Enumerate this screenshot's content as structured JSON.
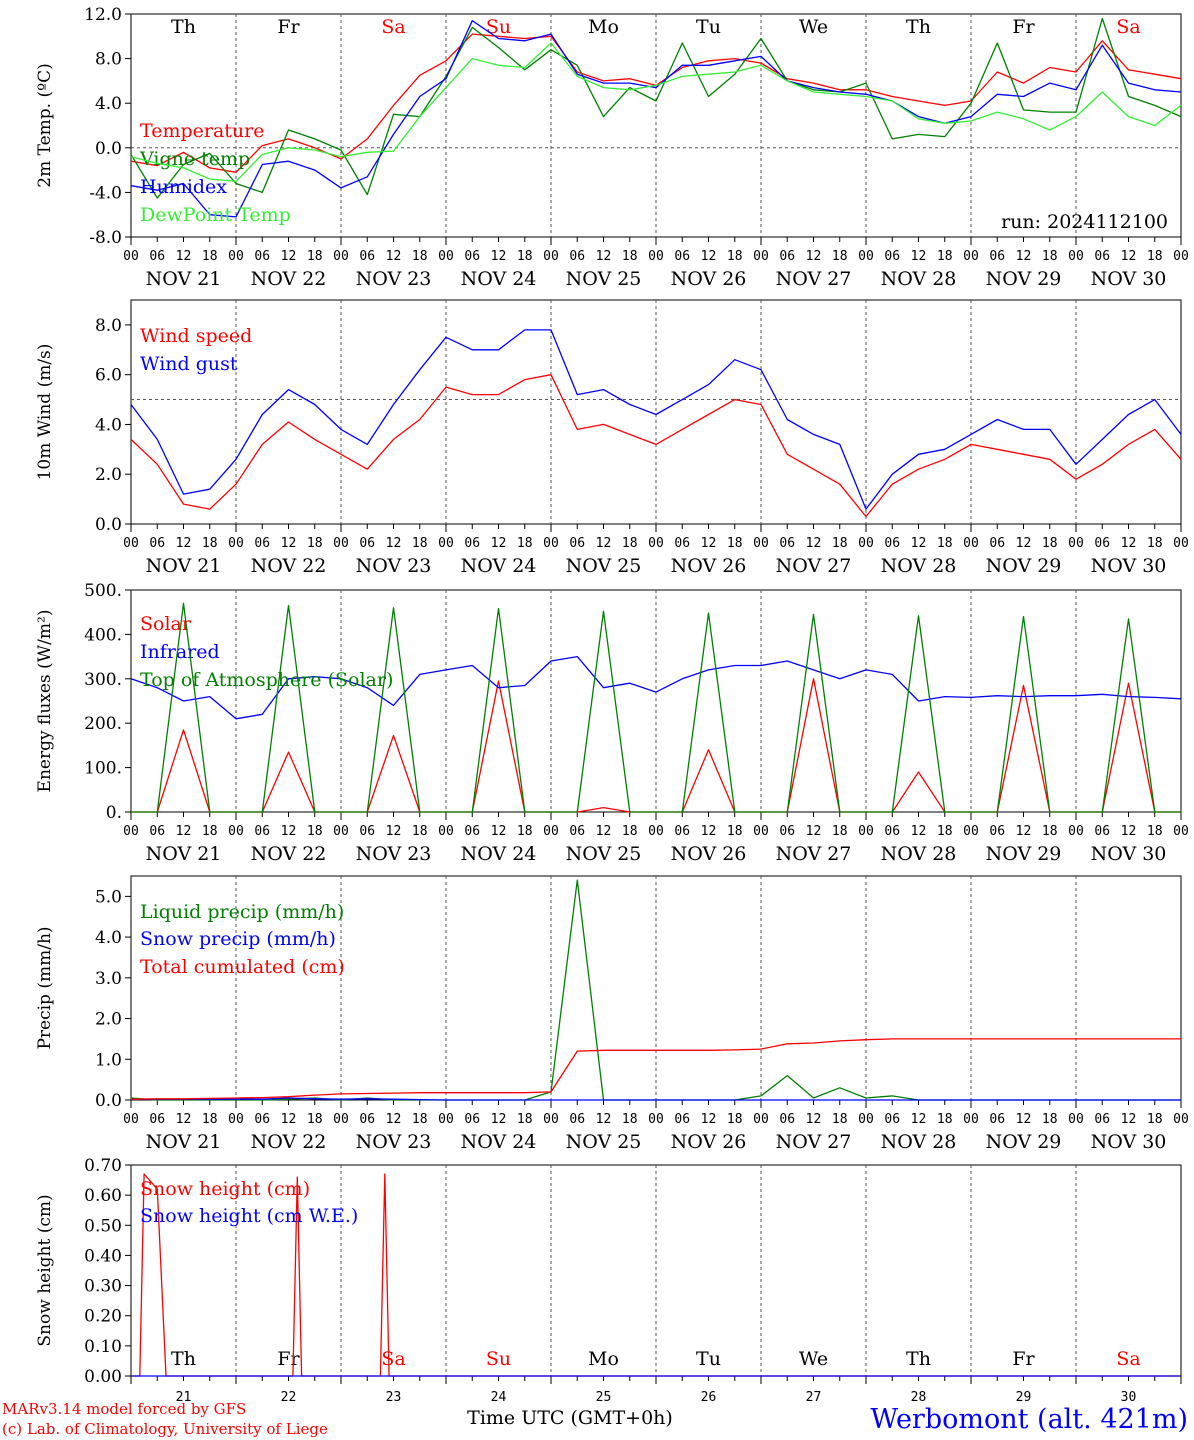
{
  "footer": {
    "model_line": "MARv3.14 model forced by GFS",
    "credit_line": "(c) Lab. of Climatology, University of Liege",
    "xaxis_label": "Time UTC (GMT+0h)",
    "station": "Werbomont (alt. 421m)"
  },
  "colors": {
    "red": "#ff0000",
    "darkgreen": "#008000",
    "blue": "#0000ff",
    "lightgreen": "#33ee33",
    "grid": "#555555"
  },
  "time_axis": {
    "hour_ticks": [
      "00",
      "06",
      "12",
      "18"
    ],
    "end_tick": "00",
    "days": [
      "NOV 21",
      "NOV 22",
      "NOV 23",
      "NOV 24",
      "NOV 25",
      "NOV 26",
      "NOV 27",
      "NOV 28",
      "NOV 29",
      "NOV 30"
    ],
    "weekdays": [
      "Th",
      "Fr",
      "Sa",
      "Su",
      "Mo",
      "Tu",
      "We",
      "Th",
      "Fr",
      "Sa"
    ],
    "weekend_flags": [
      false,
      false,
      true,
      true,
      false,
      false,
      false,
      false,
      false,
      true
    ],
    "day_numbers": [
      "21",
      "22",
      "23",
      "24",
      "25",
      "26",
      "27",
      "28",
      "29",
      "30"
    ]
  },
  "chart_data": [
    {
      "type": "line",
      "ylabel": "2m Temp. (ºC)",
      "ylim": [
        -8,
        12
      ],
      "yticks": [
        "12.0",
        "8.0",
        "4.0",
        "0.0",
        "-4.0",
        "-8.0"
      ],
      "reference_line": 0,
      "run_label": "run: 2024112100",
      "x_hours": [
        0,
        6,
        12,
        18,
        24,
        30,
        36,
        42,
        48,
        54,
        60,
        66,
        72,
        78,
        84,
        90,
        96,
        102,
        108,
        114,
        120,
        126,
        132,
        138,
        144,
        150,
        156,
        162,
        168,
        174,
        180,
        186,
        192,
        198,
        204,
        210,
        216,
        222,
        228,
        234,
        240
      ],
      "series": [
        {
          "name": "Temperature",
          "color": "red",
          "values": [
            -1.2,
            -1.6,
            -0.4,
            -1.8,
            -2.2,
            0.2,
            0.8,
            0,
            -1,
            0.8,
            3.8,
            6.5,
            7.8,
            10.2,
            10,
            9.8,
            10,
            6.8,
            6,
            6.2,
            5.6,
            7.2,
            7.8,
            8,
            7.6,
            6.2,
            5.8,
            5.2,
            5.2,
            4.6,
            4.2,
            3.8,
            4.2,
            6.8,
            5.8,
            7.2,
            6.8,
            9.6,
            7,
            6.6,
            6.2
          ]
        },
        {
          "name": "Vigne temp",
          "color": "darkgreen",
          "values": [
            -0.6,
            -4.5,
            -1.5,
            -0.5,
            -3.2,
            -4,
            1.6,
            0.8,
            -0.2,
            -4.2,
            3,
            2.8,
            6.4,
            10.8,
            9,
            7,
            8.8,
            7.4,
            2.8,
            5.4,
            4.2,
            9.4,
            4.6,
            6.6,
            9.8,
            6,
            5.2,
            5,
            5.8,
            0.8,
            1.2,
            1,
            4,
            9.4,
            3.4,
            3.2,
            3.2,
            11.6,
            4.6,
            3.8,
            2.8
          ]
        },
        {
          "name": "Humidex",
          "color": "blue",
          "values": [
            -3.4,
            -3.8,
            -3.2,
            -6,
            -6.2,
            -1.5,
            -1.2,
            -2,
            -3.6,
            -2.6,
            1.2,
            4.6,
            6.2,
            11.4,
            9.8,
            9.6,
            10.2,
            6.6,
            5.8,
            5.8,
            5.4,
            7.4,
            7.4,
            7.8,
            8.2,
            6,
            5.4,
            5,
            4.8,
            4.2,
            2.8,
            2.2,
            2.8,
            4.8,
            4.6,
            5.8,
            5.2,
            9.2,
            5.8,
            5.2,
            5
          ]
        },
        {
          "name": "DewPoint Temp",
          "color": "lightgreen",
          "values": [
            -0.8,
            -1.4,
            -1.8,
            -2.8,
            -3,
            -0.6,
            0,
            -0.2,
            -0.8,
            -0.4,
            -0.3,
            2.8,
            5.4,
            8,
            7.4,
            7.2,
            9.4,
            6.4,
            5.4,
            5.2,
            5.6,
            6.4,
            6.6,
            6.8,
            7.4,
            6,
            5,
            4.8,
            4.6,
            4.2,
            2.6,
            2.2,
            2.4,
            3.2,
            2.6,
            1.6,
            2.8,
            5,
            2.8,
            2,
            3.8
          ]
        }
      ]
    },
    {
      "type": "line",
      "ylabel": "10m Wind (m/s)",
      "ylim": [
        0,
        9
      ],
      "yticks": [
        "8.0",
        "6.0",
        "4.0",
        "2.0",
        "0.0"
      ],
      "reference_line": 5,
      "x_hours": [
        0,
        6,
        12,
        18,
        24,
        30,
        36,
        42,
        48,
        54,
        60,
        66,
        72,
        78,
        84,
        90,
        96,
        102,
        108,
        114,
        120,
        126,
        132,
        138,
        144,
        150,
        156,
        162,
        168,
        174,
        180,
        186,
        192,
        198,
        204,
        210,
        216,
        222,
        228,
        234,
        240
      ],
      "series": [
        {
          "name": "Wind speed",
          "color": "red",
          "values": [
            3.4,
            2.4,
            0.8,
            0.6,
            1.6,
            3.2,
            4.1,
            3.4,
            2.8,
            2.2,
            3.4,
            4.2,
            5.5,
            5.2,
            5.2,
            5.8,
            6,
            3.8,
            4,
            3.6,
            3.2,
            3.8,
            4.4,
            5,
            4.8,
            2.8,
            2.2,
            1.6,
            0.3,
            1.6,
            2.2,
            2.6,
            3.2,
            3,
            2.8,
            2.6,
            1.8,
            2.4,
            3.2,
            3.8,
            2.6
          ]
        },
        {
          "name": "Wind gust",
          "color": "blue",
          "values": [
            4.8,
            3.4,
            1.2,
            1.4,
            2.6,
            4.4,
            5.4,
            4.8,
            3.8,
            3.2,
            4.8,
            6.2,
            7.5,
            7,
            7,
            7.8,
            7.8,
            5.2,
            5.4,
            4.8,
            4.4,
            5,
            5.6,
            6.6,
            6.2,
            4.2,
            3.6,
            3.2,
            0.6,
            2,
            2.8,
            3,
            3.6,
            4.2,
            3.8,
            3.8,
            2.4,
            3.4,
            4.4,
            5,
            3.6
          ]
        }
      ]
    },
    {
      "type": "line",
      "ylabel": "Energy fluxes (W/m²)",
      "ylim": [
        0,
        500
      ],
      "yticks": [
        "500.",
        "400.",
        "300.",
        "200.",
        "100.",
        "0."
      ],
      "x_hours": [
        0,
        6,
        12,
        18,
        24,
        30,
        36,
        42,
        48,
        54,
        60,
        66,
        72,
        78,
        84,
        90,
        96,
        102,
        108,
        114,
        120,
        126,
        132,
        138,
        144,
        150,
        156,
        162,
        168,
        174,
        180,
        186,
        192,
        198,
        204,
        210,
        216,
        222,
        228,
        234,
        240
      ],
      "series": [
        {
          "name": "Solar",
          "color": "red",
          "values": [
            0,
            0,
            185,
            0,
            0,
            0,
            135,
            0,
            0,
            0,
            172,
            0,
            0,
            0,
            295,
            0,
            0,
            0,
            10,
            0,
            0,
            0,
            140,
            0,
            0,
            0,
            300,
            0,
            0,
            0,
            90,
            0,
            0,
            0,
            285,
            0,
            0,
            0,
            290,
            0,
            0
          ]
        },
        {
          "name": "Infrared",
          "color": "blue",
          "values": [
            300,
            280,
            250,
            260,
            210,
            220,
            300,
            305,
            300,
            280,
            240,
            310,
            320,
            330,
            280,
            285,
            340,
            350,
            280,
            290,
            270,
            300,
            320,
            330,
            330,
            340,
            320,
            300,
            320,
            310,
            250,
            260,
            258,
            262,
            260,
            262,
            262,
            265,
            260,
            258,
            255
          ]
        },
        {
          "name": "Top of Atmosphere (Solar)",
          "color": "darkgreen",
          "values": [
            0,
            0,
            470,
            0,
            0,
            0,
            465,
            0,
            0,
            0,
            460,
            0,
            0,
            0,
            458,
            0,
            0,
            0,
            452,
            0,
            0,
            0,
            448,
            0,
            0,
            0,
            445,
            0,
            0,
            0,
            442,
            0,
            0,
            0,
            440,
            0,
            0,
            0,
            435,
            0,
            0
          ]
        }
      ]
    },
    {
      "type": "line",
      "ylabel": "Precip (mm/h)",
      "ylim": [
        0,
        5.5
      ],
      "yticks": [
        "5.0",
        "4.0",
        "3.0",
        "2.0",
        "1.0",
        "0.0"
      ],
      "x_hours": [
        0,
        6,
        12,
        18,
        24,
        30,
        36,
        42,
        48,
        54,
        60,
        66,
        72,
        78,
        84,
        90,
        96,
        102,
        108,
        114,
        120,
        126,
        132,
        138,
        144,
        150,
        156,
        162,
        168,
        174,
        180,
        186,
        192,
        198,
        204,
        210,
        216,
        222,
        228,
        234,
        240
      ],
      "series": [
        {
          "name": "Liquid precip (mm/h)",
          "color": "darkgreen",
          "values": [
            0.05,
            0,
            0,
            0,
            0,
            0,
            0.02,
            0.05,
            0,
            0.05,
            0,
            0,
            0,
            0,
            0,
            0,
            0.2,
            5.4,
            0,
            0,
            0,
            0,
            0,
            0,
            0.1,
            0.6,
            0.05,
            0.3,
            0.05,
            0.1,
            0,
            0,
            0,
            0,
            0,
            0,
            0,
            0,
            0,
            0,
            0
          ]
        },
        {
          "name": "Snow precip (mm/h)",
          "color": "blue",
          "values": [
            0.02,
            0.02,
            0.02,
            0.02,
            0.02,
            0.02,
            0.05,
            0.03,
            0.02,
            0.03,
            0.02,
            0.01,
            0,
            0,
            0,
            0,
            0,
            0,
            0,
            0,
            0,
            0,
            0,
            0,
            0,
            0,
            0,
            0,
            0,
            0,
            0,
            0,
            0,
            0,
            0,
            0,
            0,
            0,
            0,
            0,
            0
          ]
        },
        {
          "name": "Total cumulated (cm)",
          "color": "red",
          "values": [
            0.02,
            0.03,
            0.03,
            0.04,
            0.05,
            0.06,
            0.08,
            0.12,
            0.15,
            0.16,
            0.17,
            0.18,
            0.18,
            0.18,
            0.18,
            0.18,
            0.2,
            1.2,
            1.22,
            1.22,
            1.22,
            1.22,
            1.22,
            1.23,
            1.25,
            1.38,
            1.4,
            1.45,
            1.48,
            1.5,
            1.5,
            1.5,
            1.5,
            1.5,
            1.5,
            1.5,
            1.5,
            1.5,
            1.5,
            1.5,
            1.5
          ]
        }
      ]
    },
    {
      "type": "line",
      "ylabel": "Snow height (cm)",
      "ylim": [
        0,
        0.7
      ],
      "yticks": [
        "0.70",
        "0.60",
        "0.50",
        "0.40",
        "0.30",
        "0.20",
        "0.10",
        "0.00"
      ],
      "series": [
        {
          "name": "Snow height (cm)",
          "color": "red",
          "points": [
            [
              0,
              0
            ],
            [
              2,
              0
            ],
            [
              3,
              0.67
            ],
            [
              6,
              0.62
            ],
            [
              8,
              0
            ],
            [
              37,
              0
            ],
            [
              38,
              0.66
            ],
            [
              39,
              0
            ],
            [
              57,
              0
            ],
            [
              58,
              0.67
            ],
            [
              59,
              0
            ],
            [
              240,
              0
            ]
          ]
        },
        {
          "name": "Snow height (cm W.E.)",
          "color": "blue",
          "points": [
            [
              0,
              0
            ],
            [
              240,
              0
            ]
          ]
        }
      ]
    }
  ]
}
